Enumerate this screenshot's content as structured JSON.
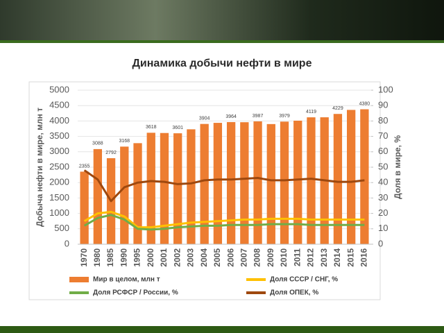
{
  "slide_title": "Динамика добычи нефти в мире",
  "chart_data": {
    "type": "bar",
    "categories": [
      "1970",
      "1980",
      "1985",
      "1990",
      "1995",
      "2000",
      "2001",
      "2002",
      "2003",
      "2004",
      "2005",
      "2006",
      "2007",
      "2008",
      "2009",
      "2010",
      "2011",
      "2012",
      "2013",
      "2014",
      "2015",
      "2016"
    ],
    "y_label": "Добыча нефти в мире, млн т",
    "y2_label": "Доля в мире, %",
    "ylim": [
      0,
      5000
    ],
    "yticks": [
      0,
      500,
      1000,
      1500,
      2000,
      2500,
      3000,
      3500,
      4000,
      4500,
      5000
    ],
    "y2lim": [
      0,
      100
    ],
    "y2ticks": [
      0,
      10,
      20,
      30,
      40,
      50,
      60,
      70,
      80,
      90,
      100
    ],
    "grid": true,
    "series": [
      {
        "name": "Мир в целом, млн т",
        "color": "#ed7d31",
        "type": "bar",
        "values": [
          2355,
          3088,
          2792,
          3168,
          3280,
          3618,
          3610,
          3601,
          3730,
          3904,
          3940,
          3964,
          3960,
          3987,
          3900,
          3979,
          4010,
          4119,
          4120,
          4229,
          4360,
          4380
        ],
        "value_labels": [
          "2355",
          "3088",
          "2792",
          "3168",
          null,
          "3618",
          null,
          "3601",
          null,
          "3904",
          null,
          "3964",
          null,
          "3987",
          null,
          "3979",
          null,
          "4119",
          null,
          "4229",
          null,
          "4380"
        ]
      },
      {
        "name": "Доля СССР / СНГ, %",
        "color": "#ffc000",
        "type": "line",
        "axis": "y2",
        "values": [
          15,
          20,
          21,
          18,
          11,
          11,
          12,
          13,
          14,
          14.5,
          15,
          15.5,
          16,
          16,
          16.5,
          16.5,
          16.5,
          16,
          16,
          16,
          16,
          16
        ]
      },
      {
        "name": "Доля РСФСР / России, %",
        "color": "#70ad47",
        "type": "line",
        "axis": "y2",
        "values": [
          12,
          17,
          19,
          16,
          10,
          9.5,
          10,
          11,
          11.5,
          12,
          12,
          12.5,
          12.5,
          12.5,
          13,
          13,
          13,
          12.5,
          12.5,
          12.5,
          12.5,
          12.5
        ]
      },
      {
        "name": "Доля ОПЕК, %",
        "color": "#9e480e",
        "type": "line",
        "axis": "y2",
        "values": [
          48,
          42,
          28,
          37,
          40,
          41,
          40.5,
          39,
          39.5,
          41.5,
          42,
          42,
          42.5,
          43,
          41.5,
          41.5,
          42,
          42.5,
          41.5,
          40.5,
          40.5,
          41.5
        ]
      }
    ]
  }
}
